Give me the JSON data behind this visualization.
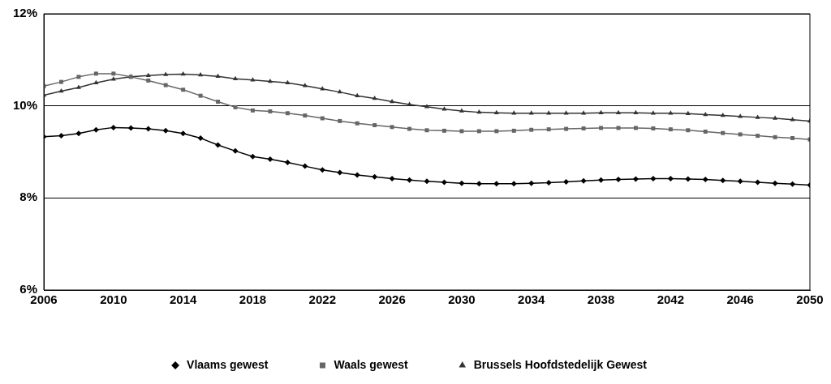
{
  "chart_data": {
    "type": "line",
    "x": [
      2006,
      2007,
      2008,
      2009,
      2010,
      2011,
      2012,
      2013,
      2014,
      2015,
      2016,
      2017,
      2018,
      2019,
      2020,
      2021,
      2022,
      2023,
      2024,
      2025,
      2026,
      2027,
      2028,
      2029,
      2030,
      2031,
      2032,
      2033,
      2034,
      2035,
      2036,
      2037,
      2038,
      2039,
      2040,
      2041,
      2042,
      2043,
      2044,
      2045,
      2046,
      2047,
      2048,
      2049,
      2050
    ],
    "series": [
      {
        "name": "Vlaams gewest",
        "color": "#000000",
        "marker": "diamond",
        "values": [
          9.33,
          9.35,
          9.4,
          9.48,
          9.53,
          9.52,
          9.5,
          9.46,
          9.4,
          9.3,
          9.15,
          9.02,
          8.9,
          8.84,
          8.77,
          8.69,
          8.61,
          8.55,
          8.5,
          8.46,
          8.42,
          8.39,
          8.36,
          8.34,
          8.32,
          8.31,
          8.31,
          8.31,
          8.32,
          8.33,
          8.35,
          8.37,
          8.39,
          8.4,
          8.41,
          8.42,
          8.42,
          8.41,
          8.4,
          8.38,
          8.36,
          8.34,
          8.32,
          8.3,
          8.28
        ]
      },
      {
        "name": "Waals gewest",
        "color": "#666666",
        "marker": "square",
        "values": [
          10.43,
          10.52,
          10.63,
          10.7,
          10.7,
          10.63,
          10.55,
          10.45,
          10.35,
          10.22,
          10.09,
          9.97,
          9.9,
          9.88,
          9.84,
          9.79,
          9.73,
          9.67,
          9.62,
          9.58,
          9.54,
          9.5,
          9.47,
          9.46,
          9.45,
          9.45,
          9.45,
          9.46,
          9.48,
          9.49,
          9.5,
          9.51,
          9.52,
          9.52,
          9.52,
          9.51,
          9.49,
          9.47,
          9.44,
          9.41,
          9.38,
          9.35,
          9.32,
          9.3,
          9.27
        ]
      },
      {
        "name": "Brussels Hoofdstedelijk Gewest",
        "color": "#333333",
        "marker": "triangle",
        "values": [
          10.23,
          10.32,
          10.4,
          10.5,
          10.58,
          10.63,
          10.66,
          10.68,
          10.69,
          10.67,
          10.64,
          10.59,
          10.56,
          10.53,
          10.5,
          10.44,
          10.37,
          10.3,
          10.22,
          10.16,
          10.09,
          10.03,
          9.98,
          9.93,
          9.89,
          9.86,
          9.85,
          9.84,
          9.84,
          9.84,
          9.84,
          9.84,
          9.85,
          9.85,
          9.85,
          9.84,
          9.84,
          9.83,
          9.81,
          9.79,
          9.77,
          9.75,
          9.73,
          9.7,
          9.67
        ]
      }
    ],
    "xlim": [
      2006,
      2050
    ],
    "xticks": [
      2006,
      2010,
      2014,
      2018,
      2022,
      2026,
      2030,
      2034,
      2038,
      2042,
      2046,
      2050
    ],
    "ylim": [
      6,
      12
    ],
    "yticks": [
      {
        "value": 6,
        "label": "6%"
      },
      {
        "value": 8,
        "label": "8%"
      },
      {
        "value": 10,
        "label": "10%"
      },
      {
        "value": 12,
        "label": "12%"
      }
    ],
    "grid": "y",
    "legend": "bottom",
    "line_style": "solid"
  }
}
